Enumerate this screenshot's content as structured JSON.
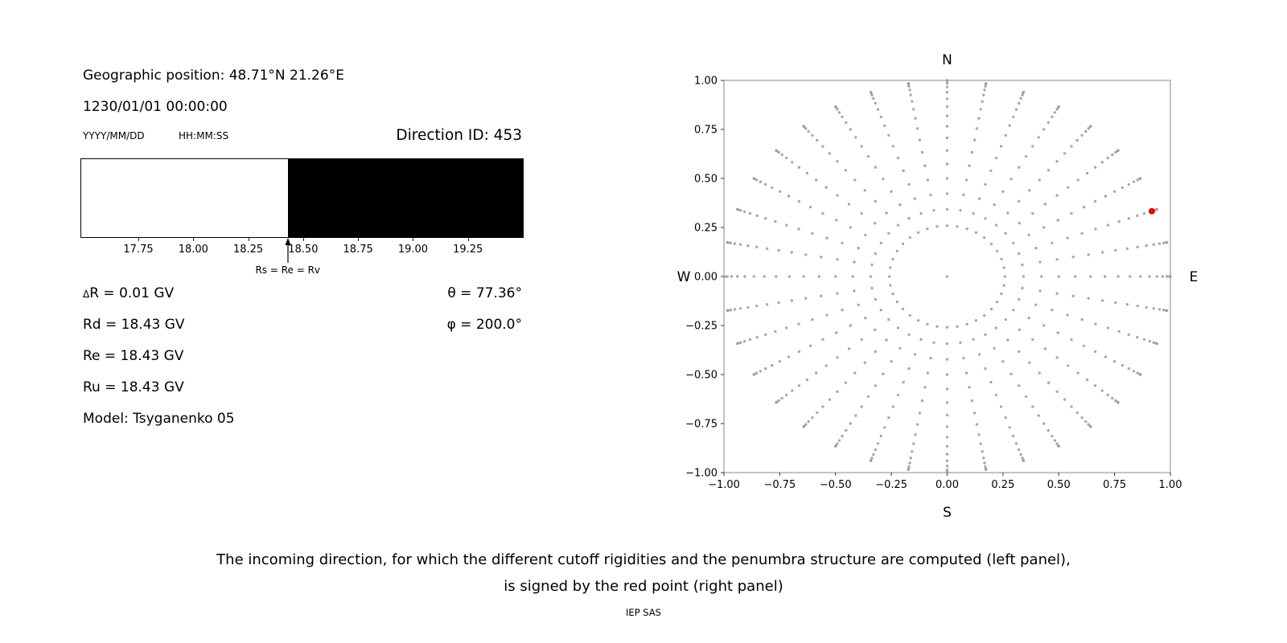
{
  "left_panel": {
    "geo_position": "Geographic position: 48.71°N 21.26°E",
    "datetime": "1230/01/01 00:00:00",
    "date_format": "YYYY/MM/DD",
    "time_format": "HH:MM:SS",
    "direction_id": "Direction ID: 453",
    "info_left": [
      "ΔR = 0.01 GV",
      "Rd = 18.43 GV",
      "Re = 18.43 GV",
      "Ru = 18.43 GV",
      "Model: Tsyganenko 05"
    ],
    "info_right": [
      "θ = 77.36°",
      "φ = 200.0°"
    ]
  },
  "caption": {
    "line1": "The incoming direction, for which the different cutoff rigidities and the penumbra structure are computed (left panel),",
    "line2": "is signed by the red point (right panel)",
    "credit": "IEP SAS"
  },
  "chart_data": [
    {
      "name": "penumbra-structure",
      "type": "bar",
      "xlim": [
        17.49,
        19.5
      ],
      "xticks": [
        17.75,
        18.0,
        18.25,
        18.5,
        18.75,
        19.0,
        19.25
      ],
      "regions": [
        {
          "from": 17.49,
          "to": 18.43,
          "state": "allowed",
          "color": "#ffffff"
        },
        {
          "from": 18.43,
          "to": 19.5,
          "state": "forbidden",
          "color": "#000000"
        }
      ],
      "marker": {
        "x": 18.43,
        "label": "Rs = Re = Rv"
      },
      "values": {
        "delta_R_GV": 0.01,
        "Rd_GV": 18.43,
        "Re_GV": 18.43,
        "Ru_GV": 18.43,
        "theta_deg": 77.36,
        "phi_deg": 200.0,
        "model": "Tsyganenko 05"
      }
    },
    {
      "name": "incoming-direction-map",
      "type": "scatter",
      "xlim": [
        -1,
        1
      ],
      "ylim": [
        -1,
        1
      ],
      "xticks": [
        -1,
        -0.75,
        -0.5,
        -0.25,
        0,
        0.25,
        0.5,
        0.75,
        1
      ],
      "yticks": [
        -1,
        -0.75,
        -0.5,
        -0.25,
        0,
        0.25,
        0.5,
        0.75,
        1
      ],
      "compass": {
        "top": "N",
        "bottom": "S",
        "left": "W",
        "right": "E"
      },
      "dot_color": "#9a9a9a",
      "grid_generator": {
        "azimuth_step_deg": 10,
        "zenith_start_deg": 15,
        "zenith_end_deg": 90,
        "zenith_step_deg": 5,
        "radius": "sin(zenith)",
        "include_center_point": true
      },
      "red_point": {
        "x": 0.917,
        "y": 0.333,
        "color": "#dd0f0f"
      }
    }
  ]
}
